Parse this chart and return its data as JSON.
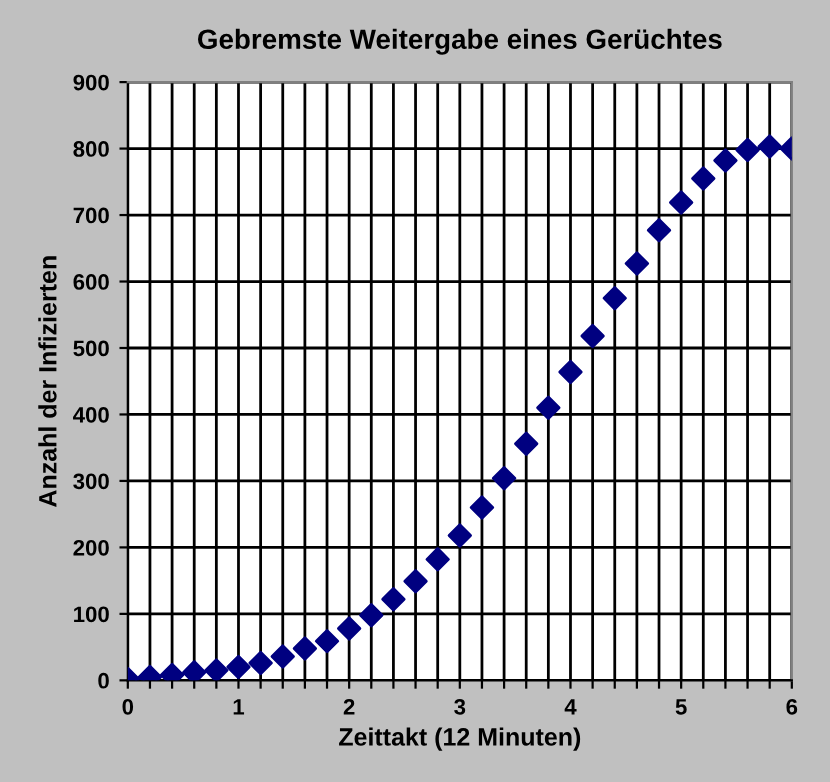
{
  "chart_data": {
    "type": "scatter",
    "title": "Gebremste Weitergabe eines Gerüchtes",
    "xlabel": "Zeittakt (12 Minuten)",
    "ylabel": "Anzahl der Infizierten",
    "x": [
      0,
      0.2,
      0.4,
      0.6,
      0.8,
      1.0,
      1.2,
      1.4,
      1.6,
      1.8,
      2.0,
      2.2,
      2.4,
      2.6,
      2.8,
      3.0,
      3.2,
      3.4,
      3.6,
      3.8,
      4.0,
      4.2,
      4.4,
      4.6,
      4.8,
      5.0,
      5.2,
      5.4,
      5.6,
      5.8,
      6.0
    ],
    "series": [
      {
        "color": "#000080",
        "values": [
          2,
          5,
          8,
          12,
          15,
          20,
          26,
          36,
          48,
          59,
          78,
          98,
          122,
          149,
          182,
          218,
          260,
          304,
          356,
          410,
          464,
          518,
          575,
          627,
          677,
          719,
          755,
          782,
          798,
          803,
          800
        ]
      }
    ],
    "marker": "diamond",
    "xlim": [
      0,
      6
    ],
    "ylim": [
      0,
      900
    ],
    "xticks": [
      0,
      {
        "value": 0.2,
        "label": null
      },
      {
        "value": 0.4,
        "label": null
      },
      {
        "value": 0.6,
        "label": null
      },
      {
        "value": 0.8,
        "label": null
      },
      1,
      {
        "value": 1.2,
        "label": null
      },
      {
        "value": 1.4,
        "label": null
      },
      {
        "value": 1.6,
        "label": null
      },
      {
        "value": 1.8,
        "label": null
      },
      2,
      {
        "value": 2.2,
        "label": null
      },
      {
        "value": 2.4,
        "label": null
      },
      {
        "value": 2.6,
        "label": null
      },
      {
        "value": 2.8,
        "label": null
      },
      3,
      {
        "value": 3.2,
        "label": null
      },
      {
        "value": 3.4,
        "label": null
      },
      {
        "value": 3.6,
        "label": null
      },
      {
        "value": 3.8,
        "label": null
      },
      4,
      {
        "value": 4.2,
        "label": null
      },
      {
        "value": 4.4,
        "label": null
      },
      {
        "value": 4.6,
        "label": null
      },
      {
        "value": 4.8,
        "label": null
      },
      5,
      {
        "value": 5.2,
        "label": null
      },
      {
        "value": 5.4,
        "label": null
      },
      {
        "value": 5.6,
        "label": null
      },
      {
        "value": 5.8,
        "label": null
      },
      6
    ],
    "yticks": [
      0,
      100,
      200,
      300,
      400,
      500,
      600,
      700,
      800,
      900
    ],
    "grid": true,
    "legend": false
  }
}
